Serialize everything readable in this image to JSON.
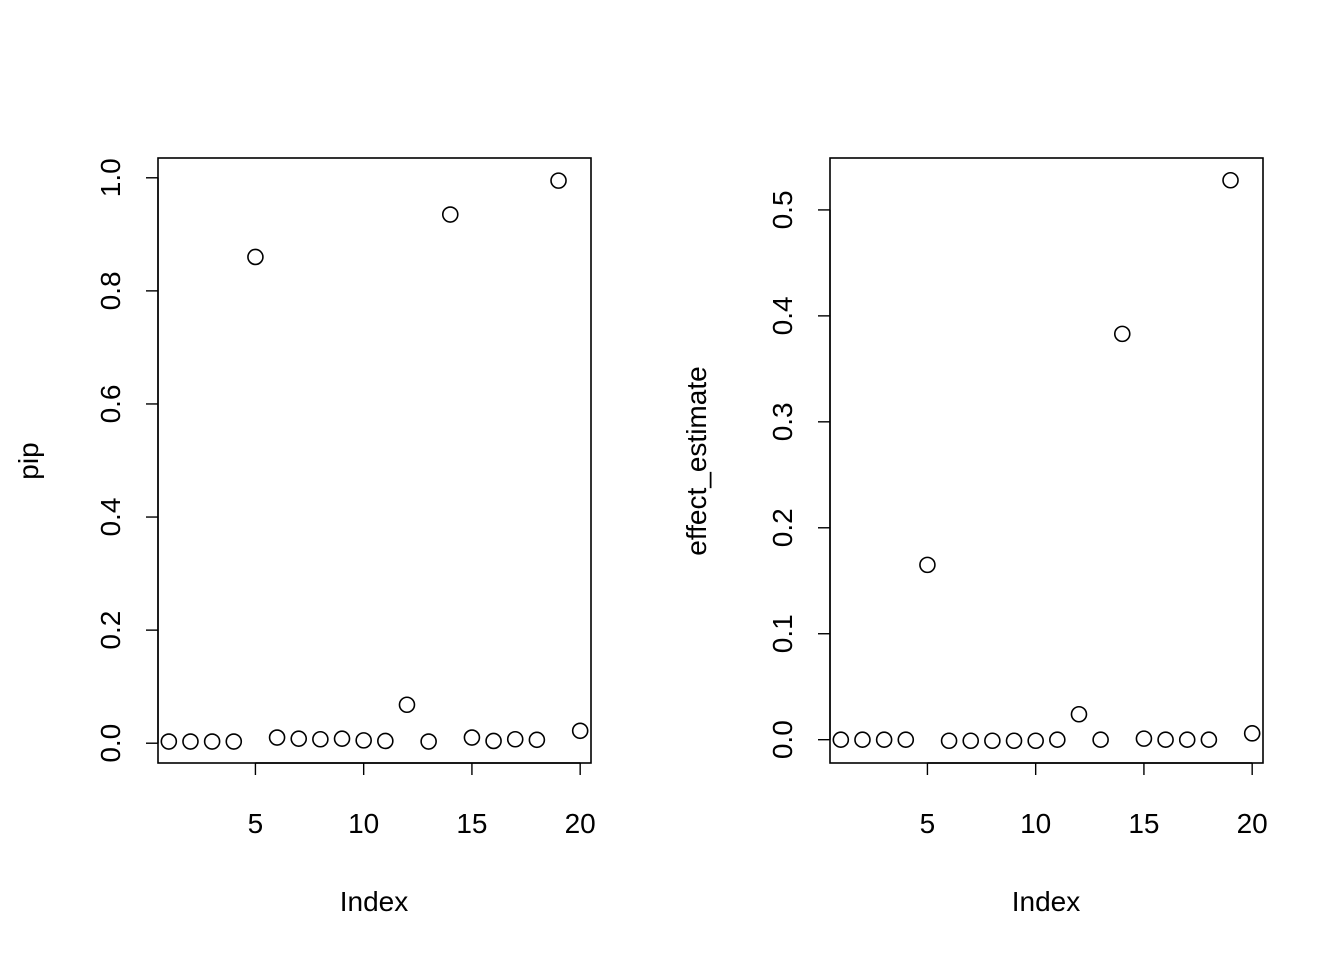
{
  "chart_data": [
    {
      "type": "scatter",
      "title": "",
      "xlabel": "Index",
      "ylabel": "pip",
      "xlim": [
        0.5,
        20.5
      ],
      "ylim": [
        -0.035,
        1.035
      ],
      "xticks": [
        5,
        10,
        15,
        20
      ],
      "xtick_labels": [
        "5",
        "10",
        "15",
        "20"
      ],
      "yticks": [
        0.0,
        0.2,
        0.4,
        0.6,
        0.8,
        1.0
      ],
      "ytick_labels": [
        "0.0",
        "0.2",
        "0.4",
        "0.6",
        "0.8",
        "1.0"
      ],
      "grid": false,
      "x": [
        1,
        2,
        3,
        4,
        5,
        6,
        7,
        8,
        9,
        10,
        11,
        12,
        13,
        14,
        15,
        16,
        17,
        18,
        19,
        20
      ],
      "y": [
        0.003,
        0.003,
        0.003,
        0.003,
        0.86,
        0.01,
        0.008,
        0.007,
        0.008,
        0.005,
        0.004,
        0.068,
        0.003,
        0.935,
        0.01,
        0.004,
        0.007,
        0.006,
        0.995,
        0.022
      ]
    },
    {
      "type": "scatter",
      "title": "",
      "xlabel": "Index",
      "ylabel": "effect_estimate",
      "xlim": [
        0.5,
        20.5
      ],
      "ylim": [
        -0.022,
        0.549
      ],
      "xticks": [
        5,
        10,
        15,
        20
      ],
      "xtick_labels": [
        "5",
        "10",
        "15",
        "20"
      ],
      "yticks": [
        0.0,
        0.1,
        0.2,
        0.3,
        0.4,
        0.5
      ],
      "ytick_labels": [
        "0.0",
        "0.1",
        "0.2",
        "0.3",
        "0.4",
        "0.5"
      ],
      "grid": false,
      "x": [
        1,
        2,
        3,
        4,
        5,
        6,
        7,
        8,
        9,
        10,
        11,
        12,
        13,
        14,
        15,
        16,
        17,
        18,
        19,
        20
      ],
      "y": [
        0.0,
        0.0,
        0.0,
        0.0,
        0.165,
        -0.001,
        -0.001,
        -0.001,
        -0.001,
        -0.001,
        0.0,
        0.024,
        0.0,
        0.383,
        0.001,
        0.0,
        0.0,
        0.0,
        0.528,
        0.006
      ]
    }
  ]
}
